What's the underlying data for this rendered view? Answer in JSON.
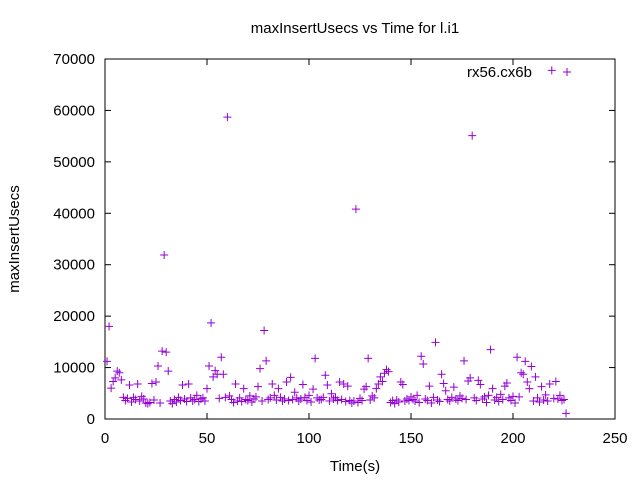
{
  "chart_data": {
    "type": "scatter",
    "title": "maxInsertUsecs vs Time for l.i1",
    "xlabel": "Time(s)",
    "ylabel": "maxInsertUsecs",
    "xlim": [
      0,
      250
    ],
    "ylim": [
      0,
      70000
    ],
    "x_ticks": [
      0,
      50,
      100,
      150,
      200,
      250
    ],
    "y_ticks": [
      0,
      10000,
      20000,
      30000,
      40000,
      50000,
      60000,
      70000
    ],
    "grid": false,
    "legend_position": "top-right",
    "marker": "+",
    "series": [
      {
        "name": "rx56.cx6b",
        "color": "#9400d3",
        "points": [
          [
            1,
            11200
          ],
          [
            2,
            18000
          ],
          [
            3,
            6000
          ],
          [
            4,
            7300
          ],
          [
            5,
            8000
          ],
          [
            6,
            9300
          ],
          [
            7,
            9000
          ],
          [
            8,
            7600
          ],
          [
            9,
            4200
          ],
          [
            10,
            3600
          ],
          [
            11,
            4000
          ],
          [
            12,
            6600
          ],
          [
            13,
            3300
          ],
          [
            14,
            4200
          ],
          [
            15,
            3800
          ],
          [
            16,
            6800
          ],
          [
            17,
            3500
          ],
          [
            18,
            4400
          ],
          [
            19,
            3900
          ],
          [
            20,
            3100
          ],
          [
            21,
            3000
          ],
          [
            22,
            3200
          ],
          [
            23,
            6900
          ],
          [
            24,
            3700
          ],
          [
            25,
            7200
          ],
          [
            26,
            10300
          ],
          [
            27,
            3100
          ],
          [
            28,
            13200
          ],
          [
            29,
            31900
          ],
          [
            30,
            13000
          ],
          [
            31,
            9300
          ],
          [
            32,
            3500
          ],
          [
            33,
            3000
          ],
          [
            34,
            3800
          ],
          [
            35,
            3300
          ],
          [
            36,
            4200
          ],
          [
            37,
            3600
          ],
          [
            38,
            6600
          ],
          [
            39,
            3900
          ],
          [
            40,
            3400
          ],
          [
            41,
            6800
          ],
          [
            42,
            4100
          ],
          [
            43,
            3500
          ],
          [
            44,
            3800
          ],
          [
            45,
            4600
          ],
          [
            46,
            3400
          ],
          [
            47,
            3900
          ],
          [
            48,
            4100
          ],
          [
            49,
            3500
          ],
          [
            50,
            5900
          ],
          [
            51,
            10300
          ],
          [
            52,
            18700
          ],
          [
            53,
            8200
          ],
          [
            54,
            9400
          ],
          [
            55,
            8700
          ],
          [
            56,
            4000
          ],
          [
            57,
            12000
          ],
          [
            58,
            8700
          ],
          [
            59,
            4200
          ],
          [
            60,
            58700
          ],
          [
            61,
            4500
          ],
          [
            62,
            3800
          ],
          [
            63,
            3200
          ],
          [
            64,
            6800
          ],
          [
            65,
            3500
          ],
          [
            66,
            4100
          ],
          [
            67,
            3400
          ],
          [
            68,
            5900
          ],
          [
            69,
            3800
          ],
          [
            70,
            3600
          ],
          [
            71,
            4500
          ],
          [
            72,
            3300
          ],
          [
            73,
            3900
          ],
          [
            74,
            4300
          ],
          [
            75,
            6300
          ],
          [
            76,
            9800
          ],
          [
            77,
            3500
          ],
          [
            78,
            17200
          ],
          [
            79,
            11300
          ],
          [
            80,
            3800
          ],
          [
            81,
            4100
          ],
          [
            82,
            6800
          ],
          [
            83,
            4600
          ],
          [
            84,
            3700
          ],
          [
            85,
            5900
          ],
          [
            86,
            4200
          ],
          [
            87,
            3500
          ],
          [
            88,
            3900
          ],
          [
            89,
            7200
          ],
          [
            90,
            3600
          ],
          [
            91,
            8100
          ],
          [
            92,
            3800
          ],
          [
            93,
            5200
          ],
          [
            94,
            4100
          ],
          [
            95,
            3500
          ],
          [
            96,
            3900
          ],
          [
            97,
            6700
          ],
          [
            98,
            4200
          ],
          [
            99,
            3600
          ],
          [
            100,
            4600
          ],
          [
            101,
            3300
          ],
          [
            102,
            5800
          ],
          [
            103,
            11800
          ],
          [
            104,
            4100
          ],
          [
            105,
            3700
          ],
          [
            106,
            3800
          ],
          [
            107,
            4200
          ],
          [
            108,
            8500
          ],
          [
            109,
            6600
          ],
          [
            110,
            3500
          ],
          [
            111,
            4900
          ],
          [
            112,
            3900
          ],
          [
            113,
            4200
          ],
          [
            114,
            3600
          ],
          [
            115,
            7200
          ],
          [
            116,
            3800
          ],
          [
            117,
            6800
          ],
          [
            118,
            3400
          ],
          [
            119,
            6400
          ],
          [
            120,
            3600
          ],
          [
            121,
            3100
          ],
          [
            122,
            3500
          ],
          [
            123,
            40800
          ],
          [
            124,
            3200
          ],
          [
            125,
            4000
          ],
          [
            126,
            3600
          ],
          [
            127,
            5800
          ],
          [
            128,
            6300
          ],
          [
            129,
            11800
          ],
          [
            130,
            3700
          ],
          [
            131,
            4500
          ],
          [
            132,
            4100
          ],
          [
            133,
            5900
          ],
          [
            134,
            6800
          ],
          [
            135,
            8200
          ],
          [
            136,
            7300
          ],
          [
            137,
            8900
          ],
          [
            138,
            9600
          ],
          [
            139,
            9200
          ],
          [
            140,
            3200
          ],
          [
            141,
            3600
          ],
          [
            142,
            3000
          ],
          [
            143,
            3700
          ],
          [
            144,
            3300
          ],
          [
            145,
            7200
          ],
          [
            146,
            6700
          ],
          [
            147,
            3500
          ],
          [
            148,
            3900
          ],
          [
            149,
            3600
          ],
          [
            150,
            4300
          ],
          [
            151,
            3800
          ],
          [
            152,
            3500
          ],
          [
            153,
            4600
          ],
          [
            154,
            3200
          ],
          [
            155,
            12200
          ],
          [
            156,
            10700
          ],
          [
            157,
            3900
          ],
          [
            158,
            3600
          ],
          [
            159,
            6400
          ],
          [
            160,
            3100
          ],
          [
            161,
            4200
          ],
          [
            162,
            14900
          ],
          [
            163,
            3700
          ],
          [
            164,
            3400
          ],
          [
            165,
            8700
          ],
          [
            166,
            6900
          ],
          [
            167,
            5500
          ],
          [
            168,
            3800
          ],
          [
            169,
            3500
          ],
          [
            170,
            4200
          ],
          [
            171,
            6200
          ],
          [
            172,
            3900
          ],
          [
            173,
            3600
          ],
          [
            174,
            4500
          ],
          [
            175,
            4000
          ],
          [
            176,
            11300
          ],
          [
            177,
            3800
          ],
          [
            178,
            7400
          ],
          [
            179,
            8000
          ],
          [
            180,
            55100
          ],
          [
            181,
            4100
          ],
          [
            182,
            3600
          ],
          [
            183,
            7500
          ],
          [
            184,
            6700
          ],
          [
            185,
            3900
          ],
          [
            186,
            4300
          ],
          [
            187,
            3200
          ],
          [
            188,
            4600
          ],
          [
            189,
            13500
          ],
          [
            190,
            5900
          ],
          [
            191,
            3700
          ],
          [
            192,
            4200
          ],
          [
            193,
            3400
          ],
          [
            194,
            4800
          ],
          [
            195,
            3800
          ],
          [
            196,
            6400
          ],
          [
            197,
            7000
          ],
          [
            198,
            4100
          ],
          [
            199,
            3600
          ],
          [
            200,
            4400
          ],
          [
            201,
            3100
          ],
          [
            202,
            12000
          ],
          [
            203,
            4300
          ],
          [
            204,
            9000
          ],
          [
            205,
            8700
          ],
          [
            206,
            11200
          ],
          [
            207,
            7200
          ],
          [
            208,
            5900
          ],
          [
            209,
            10200
          ],
          [
            210,
            3500
          ],
          [
            211,
            8200
          ],
          [
            212,
            4100
          ],
          [
            213,
            3300
          ],
          [
            214,
            6300
          ],
          [
            215,
            3700
          ],
          [
            216,
            4700
          ],
          [
            217,
            3500
          ],
          [
            218,
            6800
          ],
          [
            219,
            67800
          ],
          [
            220,
            4000
          ],
          [
            221,
            7300
          ],
          [
            222,
            3900
          ],
          [
            223,
            4600
          ],
          [
            224,
            3600
          ],
          [
            225,
            3800
          ],
          [
            226,
            1100
          ]
        ]
      }
    ]
  }
}
